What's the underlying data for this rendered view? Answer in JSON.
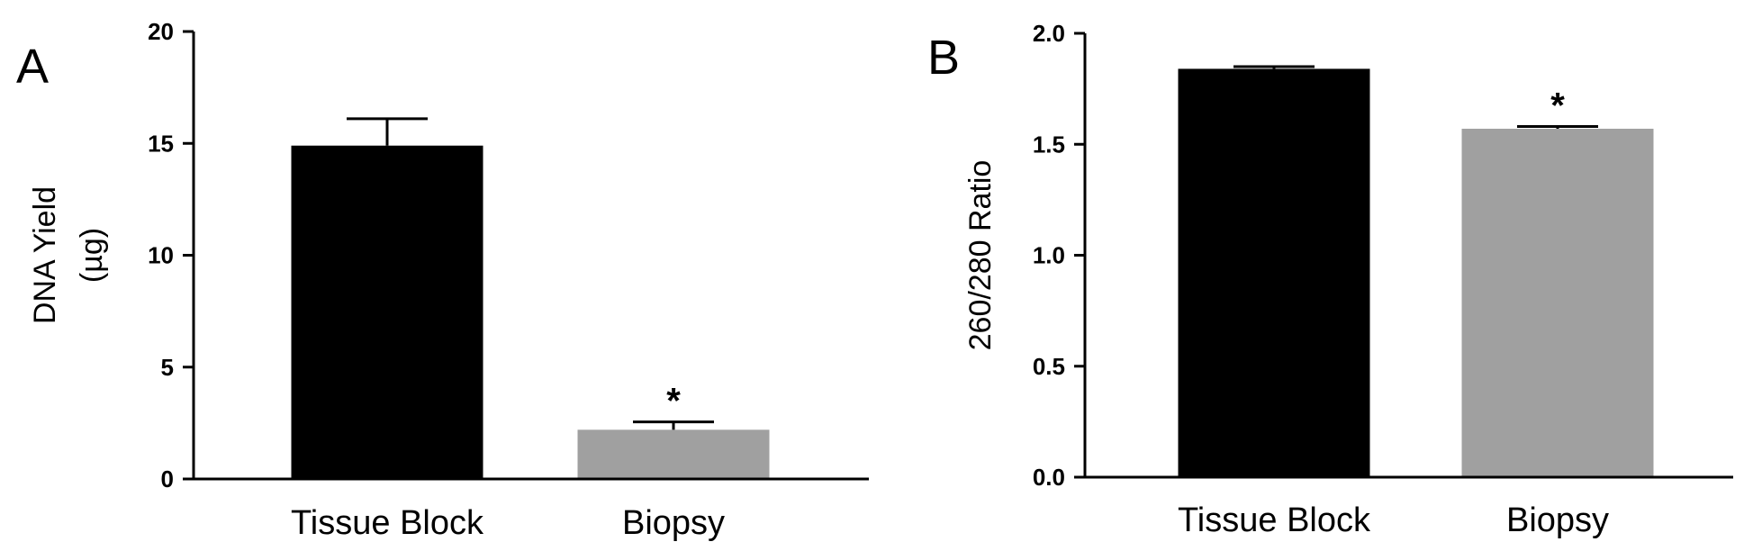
{
  "chart_data": [
    {
      "panel": "A",
      "type": "bar",
      "categories": [
        "Tissue Block",
        "Biopsy"
      ],
      "values": [
        14.9,
        2.2
      ],
      "error": [
        1.2,
        0.35
      ],
      "colors": [
        "#000000",
        "#a0a0a0"
      ],
      "significance": [
        "",
        "*"
      ],
      "ylabel_lines": [
        "DNA Yield",
        "(µg)"
      ],
      "ylim": [
        0,
        20
      ],
      "yticks": [
        0,
        5,
        10,
        15,
        20
      ],
      "ytick_labels": [
        "0",
        "5",
        "10",
        "15",
        "20"
      ],
      "grid": false
    },
    {
      "panel": "B",
      "type": "bar",
      "categories": [
        "Tissue Block",
        "Biopsy"
      ],
      "values": [
        1.84,
        1.57
      ],
      "error": [
        0.01,
        0.01
      ],
      "colors": [
        "#000000",
        "#a0a0a0"
      ],
      "significance": [
        "",
        "*"
      ],
      "ylabel_lines": [
        "260/280 Ratio"
      ],
      "ylim": [
        0,
        2.0
      ],
      "yticks": [
        0,
        0.5,
        1.0,
        1.5,
        2.0
      ],
      "ytick_labels": [
        "0.0",
        "0.5",
        "1.0",
        "1.5",
        "2.0"
      ],
      "grid": false
    }
  ]
}
